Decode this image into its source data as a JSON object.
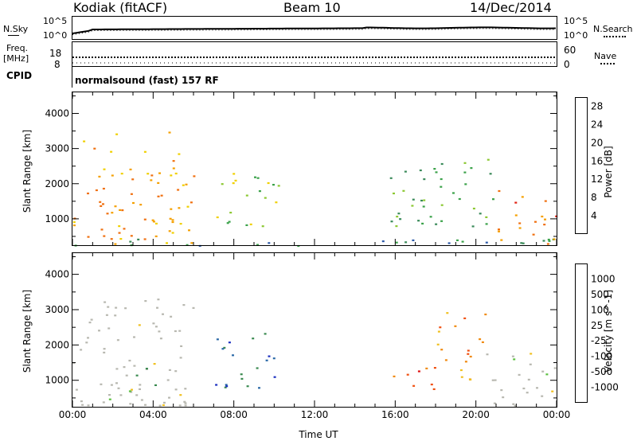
{
  "header": {
    "station": "Kodiak (fitACF)",
    "beam": "Beam 10",
    "date": "14/Dec/2014"
  },
  "noise_panel": {
    "left_label": "N.Sky",
    "right_label": "N.Search",
    "left_ticks": [
      "10^5",
      "10^0"
    ],
    "right_ticks": [
      "10^5",
      "10^0"
    ]
  },
  "freq_panel": {
    "left_label_1": "Freq.",
    "left_label_2": "[MHz]",
    "right_label": "Nave",
    "left_ticks": [
      "18",
      "8"
    ],
    "right_ticks": [
      "60",
      "0"
    ]
  },
  "cpid_panel": {
    "label": "CPID",
    "program": "normalsound (fast) 157 RF"
  },
  "colors": {
    "power_scale": [
      "#1010e0",
      "#2c5aa8",
      "#3a8a5a",
      "#3ba24a",
      "#8cc832",
      "#f0d000",
      "#f5a000",
      "#f07010",
      "#e02010"
    ],
    "velocity_scale": [
      "#1c30c0",
      "#2c6aa8",
      "#3a8a50",
      "#5cc040",
      "#b8b8b0",
      "#f0c020",
      "#f08a10",
      "#f05010",
      "#e01010"
    ]
  },
  "chart_data": [
    {
      "type": "heatmap",
      "title": "",
      "xlabel": "Time UT",
      "ylabel": "Slant Range [km]",
      "x_ticks": [
        "00:00",
        "04:00",
        "08:00",
        "12:00",
        "16:00",
        "20:00",
        "00:00"
      ],
      "y_ticks": [
        1000,
        2000,
        3000,
        4000
      ],
      "ylim": [
        250,
        4600
      ],
      "colorbar": {
        "label": "Power [dB]",
        "ticks": [
          4,
          8,
          12,
          16,
          20,
          24,
          28
        ],
        "range": [
          0,
          30
        ]
      },
      "echo_regions": [
        {
          "t_start": 0.0,
          "t_end": 6.0,
          "range_km": [
            300,
            3500
          ],
          "power_db": 22
        },
        {
          "t_start": 7.0,
          "t_end": 10.2,
          "range_km": [
            800,
            2400
          ],
          "power_db": 14
        },
        {
          "t_start": 0.0,
          "t_end": 24.0,
          "range_km": [
            250,
            500
          ],
          "power_db": 8
        },
        {
          "t_start": 15.7,
          "t_end": 21.0,
          "range_km": [
            800,
            2800
          ],
          "power_db": 12
        },
        {
          "t_start": 21.0,
          "t_end": 24.0,
          "range_km": [
            300,
            1900
          ],
          "power_db": 26
        }
      ]
    },
    {
      "type": "heatmap",
      "title": "",
      "xlabel": "Time UT",
      "ylabel": "Slant Range [km]",
      "x_ticks": [
        "00:00",
        "04:00",
        "08:00",
        "12:00",
        "16:00",
        "20:00",
        "00:00"
      ],
      "y_ticks": [
        1000,
        2000,
        3000,
        4000
      ],
      "ylim": [
        250,
        4600
      ],
      "colorbar": {
        "label": "Velocity [m s^-1]",
        "ticks": [
          1000,
          500,
          100,
          25,
          -25,
          -100,
          -500,
          -1000
        ]
      },
      "echo_regions": [
        {
          "t_start": 0.0,
          "t_end": 6.0,
          "range_km": [
            300,
            3500
          ],
          "velocity": 0
        },
        {
          "t_start": 2.5,
          "t_end": 4.2,
          "range_km": [
            700,
            1500
          ],
          "velocity": 100
        },
        {
          "t_start": 7.0,
          "t_end": 10.2,
          "range_km": [
            800,
            2400
          ],
          "velocity": 500
        },
        {
          "t_start": 15.7,
          "t_end": 18.0,
          "range_km": [
            700,
            1600
          ],
          "velocity": -500
        },
        {
          "t_start": 18.0,
          "t_end": 20.5,
          "range_km": [
            1000,
            3000
          ],
          "velocity": -100
        },
        {
          "t_start": 20.5,
          "t_end": 24.0,
          "range_km": [
            300,
            1900
          ],
          "velocity": 0
        }
      ]
    }
  ]
}
